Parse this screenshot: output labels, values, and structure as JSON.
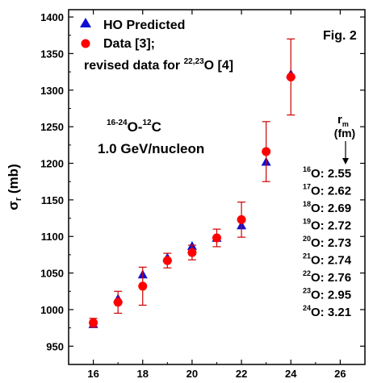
{
  "chart_data": {
    "type": "scatter",
    "figure_label": "Fig. 2",
    "ylabel": {
      "main": "σ",
      "sub": "r",
      "unit": " (mb)"
    },
    "xlim": [
      15,
      27
    ],
    "ylim": [
      925,
      1410
    ],
    "xticks": [
      16,
      18,
      20,
      22,
      24,
      26
    ],
    "yticks": [
      950,
      1000,
      1050,
      1100,
      1150,
      1200,
      1250,
      1300,
      1350,
      1400
    ],
    "legend": {
      "position": "top-left",
      "entries": [
        {
          "label": "HO Predicted",
          "marker": "triangle",
          "color": "#1010d0"
        },
        {
          "label": "Data [3];",
          "marker": "circle",
          "color": "#ff0000"
        }
      ],
      "note_text": "revised data for ",
      "note_sup": "22,23",
      "note_tail": "O [4]"
    },
    "reaction": {
      "pre_sup": "16-24",
      "mid": "O-",
      "mid_sup": "12",
      "tail": "C",
      "energy": "1.0 GeV/nucleon"
    },
    "rm_header": {
      "main": "r",
      "sub": "m",
      "unit": "(fm)"
    },
    "rm_table": [
      {
        "mass": "16",
        "text": "O: 2.55"
      },
      {
        "mass": "17",
        "text": "O: 2.62"
      },
      {
        "mass": "18",
        "text": "O: 2.69"
      },
      {
        "mass": "19",
        "text": "O: 2.72"
      },
      {
        "mass": "20",
        "text": "O: 2.73"
      },
      {
        "mass": "21",
        "text": "O: 2.74"
      },
      {
        "mass": "22",
        "text": "O: 2.76"
      },
      {
        "mass": "23",
        "text": "O: 2.95"
      },
      {
        "mass": "24",
        "text": "O: 3.21"
      }
    ],
    "series": [
      {
        "name": "HO Predicted",
        "marker": "triangle",
        "color": "#1010d0",
        "x": [
          16,
          17,
          18,
          19,
          20,
          21,
          22,
          23,
          24
        ],
        "y": [
          980,
          1015,
          1048,
          1071,
          1087,
          1098,
          1115,
          1202,
          1322
        ]
      },
      {
        "name": "Data",
        "marker": "circle",
        "color": "#ff0000",
        "error_color": "#cc0000",
        "x": [
          16,
          17,
          18,
          19,
          20,
          21,
          22,
          23,
          24
        ],
        "y": [
          982,
          1010,
          1032,
          1067,
          1078,
          1098,
          1123,
          1216,
          1318
        ],
        "err": [
          6,
          15,
          26,
          10,
          10,
          12,
          24,
          41,
          52
        ]
      }
    ]
  }
}
